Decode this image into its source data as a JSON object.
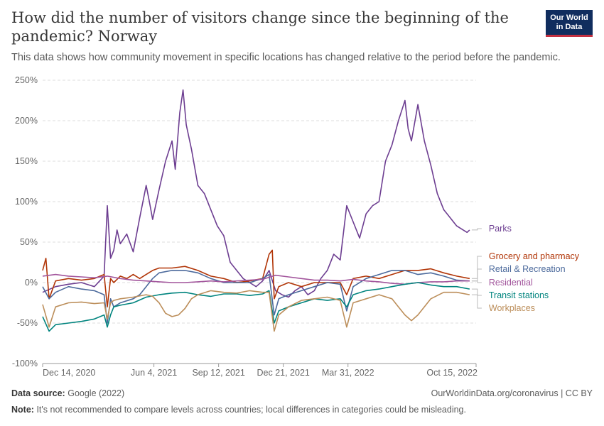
{
  "header": {
    "title": "How did the number of visitors change since the beginning of the pandemic? Norway",
    "subtitle": "This data shows how community movement in specific locations has changed relative to the period before the pandemic.",
    "logo_line1": "Our World",
    "logo_line2": "in Data"
  },
  "footer": {
    "source_label": "Data source:",
    "source_value": "Google (2022)",
    "credit": "OurWorldinData.org/coronavirus | CC BY",
    "note_label": "Note:",
    "note_value": "It's not recommended to compare levels across countries; local differences in categories could be misleading."
  },
  "chart_data": {
    "type": "line",
    "title": "How did the number of visitors change since the beginning of the pandemic? Norway",
    "xlabel": "",
    "ylabel": "",
    "x_ticks": [
      "Dec 14, 2020",
      "Jun 4, 2021",
      "Sep 12, 2021",
      "Dec 21, 2021",
      "Mar 31, 2022",
      "Oct 15, 2022"
    ],
    "x_tick_values": [
      0,
      172,
      272,
      372,
      472,
      670
    ],
    "x_range": [
      0,
      670
    ],
    "x_unit": "days since Dec 14, 2020",
    "y_ticks": [
      "-100%",
      "-50%",
      "0%",
      "50%",
      "100%",
      "150%",
      "200%",
      "250%"
    ],
    "y_tick_values": [
      -100,
      -50,
      0,
      50,
      100,
      150,
      200,
      250
    ],
    "ylim": [
      -100,
      250
    ],
    "grid": true,
    "legend": "right (line-end labels)",
    "series": [
      {
        "name": "Parks",
        "color": "#6d3e91",
        "points": [
          [
            0,
            -12
          ],
          [
            20,
            -5
          ],
          [
            40,
            -2
          ],
          [
            60,
            0
          ],
          [
            80,
            -5
          ],
          [
            95,
            8
          ],
          [
            100,
            95
          ],
          [
            105,
            30
          ],
          [
            110,
            40
          ],
          [
            115,
            65
          ],
          [
            120,
            48
          ],
          [
            130,
            60
          ],
          [
            140,
            38
          ],
          [
            150,
            80
          ],
          [
            160,
            120
          ],
          [
            165,
            100
          ],
          [
            170,
            78
          ],
          [
            180,
            115
          ],
          [
            190,
            150
          ],
          [
            200,
            175
          ],
          [
            205,
            140
          ],
          [
            212,
            210
          ],
          [
            217,
            238
          ],
          [
            222,
            195
          ],
          [
            230,
            165
          ],
          [
            240,
            120
          ],
          [
            250,
            110
          ],
          [
            260,
            90
          ],
          [
            270,
            70
          ],
          [
            280,
            58
          ],
          [
            290,
            25
          ],
          [
            300,
            15
          ],
          [
            310,
            5
          ],
          [
            320,
            0
          ],
          [
            330,
            -5
          ],
          [
            340,
            2
          ],
          [
            350,
            15
          ],
          [
            360,
            -10
          ],
          [
            370,
            -15
          ],
          [
            380,
            -18
          ],
          [
            390,
            -10
          ],
          [
            400,
            -5
          ],
          [
            410,
            -15
          ],
          [
            420,
            -10
          ],
          [
            430,
            5
          ],
          [
            440,
            15
          ],
          [
            450,
            35
          ],
          [
            460,
            28
          ],
          [
            470,
            95
          ],
          [
            480,
            75
          ],
          [
            490,
            55
          ],
          [
            500,
            85
          ],
          [
            510,
            95
          ],
          [
            520,
            100
          ],
          [
            530,
            150
          ],
          [
            540,
            170
          ],
          [
            550,
            200
          ],
          [
            560,
            225
          ],
          [
            565,
            190
          ],
          [
            570,
            175
          ],
          [
            580,
            220
          ],
          [
            590,
            175
          ],
          [
            600,
            145
          ],
          [
            610,
            110
          ],
          [
            620,
            90
          ],
          [
            630,
            80
          ],
          [
            640,
            70
          ],
          [
            650,
            65
          ],
          [
            656,
            62
          ],
          [
            660,
            65
          ]
        ]
      },
      {
        "name": "Grocery and pharmacy",
        "color": "#b13507",
        "points": [
          [
            0,
            15
          ],
          [
            5,
            30
          ],
          [
            10,
            -20
          ],
          [
            20,
            2
          ],
          [
            40,
            5
          ],
          [
            60,
            3
          ],
          [
            80,
            5
          ],
          [
            95,
            10
          ],
          [
            100,
            -30
          ],
          [
            105,
            5
          ],
          [
            110,
            0
          ],
          [
            120,
            8
          ],
          [
            130,
            5
          ],
          [
            140,
            10
          ],
          [
            150,
            5
          ],
          [
            160,
            10
          ],
          [
            170,
            15
          ],
          [
            180,
            18
          ],
          [
            200,
            18
          ],
          [
            220,
            20
          ],
          [
            240,
            15
          ],
          [
            260,
            8
          ],
          [
            280,
            5
          ],
          [
            300,
            0
          ],
          [
            320,
            2
          ],
          [
            340,
            5
          ],
          [
            350,
            35
          ],
          [
            355,
            40
          ],
          [
            358,
            -20
          ],
          [
            365,
            -5
          ],
          [
            380,
            0
          ],
          [
            400,
            -5
          ],
          [
            420,
            0
          ],
          [
            440,
            0
          ],
          [
            460,
            0
          ],
          [
            470,
            -15
          ],
          [
            480,
            5
          ],
          [
            500,
            8
          ],
          [
            520,
            5
          ],
          [
            540,
            10
          ],
          [
            560,
            15
          ],
          [
            580,
            15
          ],
          [
            600,
            17
          ],
          [
            620,
            12
          ],
          [
            640,
            8
          ],
          [
            660,
            5
          ]
        ]
      },
      {
        "name": "Retail & Recreation",
        "color": "#4c6a9c",
        "points": [
          [
            0,
            -5
          ],
          [
            10,
            -20
          ],
          [
            20,
            -12
          ],
          [
            40,
            -5
          ],
          [
            60,
            -8
          ],
          [
            80,
            -10
          ],
          [
            95,
            -15
          ],
          [
            100,
            -50
          ],
          [
            105,
            -20
          ],
          [
            110,
            -30
          ],
          [
            120,
            -25
          ],
          [
            140,
            -20
          ],
          [
            150,
            -15
          ],
          [
            160,
            -5
          ],
          [
            170,
            5
          ],
          [
            180,
            12
          ],
          [
            200,
            15
          ],
          [
            220,
            15
          ],
          [
            240,
            12
          ],
          [
            260,
            5
          ],
          [
            280,
            0
          ],
          [
            300,
            0
          ],
          [
            320,
            0
          ],
          [
            340,
            5
          ],
          [
            350,
            10
          ],
          [
            358,
            -40
          ],
          [
            365,
            -20
          ],
          [
            380,
            -15
          ],
          [
            400,
            -10
          ],
          [
            420,
            -5
          ],
          [
            440,
            0
          ],
          [
            460,
            -2
          ],
          [
            470,
            -35
          ],
          [
            480,
            -5
          ],
          [
            500,
            5
          ],
          [
            520,
            10
          ],
          [
            540,
            15
          ],
          [
            560,
            15
          ],
          [
            580,
            10
          ],
          [
            600,
            12
          ],
          [
            620,
            8
          ],
          [
            640,
            3
          ],
          [
            660,
            2
          ]
        ]
      },
      {
        "name": "Residential",
        "color": "#a2559c",
        "points": [
          [
            0,
            8
          ],
          [
            20,
            10
          ],
          [
            40,
            8
          ],
          [
            60,
            7
          ],
          [
            80,
            6
          ],
          [
            100,
            8
          ],
          [
            120,
            5
          ],
          [
            140,
            3
          ],
          [
            160,
            2
          ],
          [
            180,
            1
          ],
          [
            200,
            0
          ],
          [
            220,
            0
          ],
          [
            240,
            1
          ],
          [
            260,
            2
          ],
          [
            280,
            1
          ],
          [
            300,
            2
          ],
          [
            320,
            3
          ],
          [
            340,
            4
          ],
          [
            360,
            9
          ],
          [
            380,
            7
          ],
          [
            400,
            5
          ],
          [
            420,
            3
          ],
          [
            440,
            3
          ],
          [
            460,
            2
          ],
          [
            480,
            4
          ],
          [
            500,
            2
          ],
          [
            520,
            1
          ],
          [
            540,
            -1
          ],
          [
            560,
            -2
          ],
          [
            580,
            0
          ],
          [
            600,
            1
          ],
          [
            620,
            1
          ],
          [
            640,
            2
          ],
          [
            660,
            2
          ]
        ]
      },
      {
        "name": "Transit stations",
        "color": "#00847e",
        "points": [
          [
            0,
            -42
          ],
          [
            10,
            -60
          ],
          [
            20,
            -52
          ],
          [
            40,
            -50
          ],
          [
            60,
            -48
          ],
          [
            80,
            -45
          ],
          [
            95,
            -40
          ],
          [
            100,
            -55
          ],
          [
            105,
            -40
          ],
          [
            110,
            -30
          ],
          [
            120,
            -28
          ],
          [
            140,
            -25
          ],
          [
            160,
            -18
          ],
          [
            180,
            -15
          ],
          [
            200,
            -13
          ],
          [
            220,
            -12
          ],
          [
            240,
            -15
          ],
          [
            260,
            -17
          ],
          [
            280,
            -14
          ],
          [
            300,
            -14
          ],
          [
            320,
            -16
          ],
          [
            340,
            -14
          ],
          [
            350,
            -10
          ],
          [
            358,
            -50
          ],
          [
            365,
            -35
          ],
          [
            380,
            -30
          ],
          [
            400,
            -25
          ],
          [
            420,
            -20
          ],
          [
            440,
            -22
          ],
          [
            460,
            -20
          ],
          [
            470,
            -30
          ],
          [
            480,
            -15
          ],
          [
            500,
            -10
          ],
          [
            520,
            -8
          ],
          [
            540,
            -5
          ],
          [
            560,
            -2
          ],
          [
            580,
            0
          ],
          [
            600,
            -3
          ],
          [
            620,
            -5
          ],
          [
            640,
            -5
          ],
          [
            660,
            -8
          ]
        ]
      },
      {
        "name": "Workplaces",
        "color": "#bc8e5a",
        "points": [
          [
            0,
            -27
          ],
          [
            10,
            -55
          ],
          [
            20,
            -30
          ],
          [
            40,
            -25
          ],
          [
            60,
            -24
          ],
          [
            80,
            -26
          ],
          [
            95,
            -25
          ],
          [
            100,
            -45
          ],
          [
            105,
            -25
          ],
          [
            110,
            -22
          ],
          [
            120,
            -20
          ],
          [
            140,
            -18
          ],
          [
            160,
            -15
          ],
          [
            170,
            -17
          ],
          [
            180,
            -25
          ],
          [
            190,
            -38
          ],
          [
            200,
            -42
          ],
          [
            210,
            -40
          ],
          [
            220,
            -32
          ],
          [
            230,
            -20
          ],
          [
            240,
            -15
          ],
          [
            260,
            -10
          ],
          [
            280,
            -12
          ],
          [
            300,
            -13
          ],
          [
            320,
            -10
          ],
          [
            340,
            -12
          ],
          [
            350,
            -12
          ],
          [
            358,
            -60
          ],
          [
            365,
            -40
          ],
          [
            380,
            -30
          ],
          [
            400,
            -22
          ],
          [
            420,
            -20
          ],
          [
            440,
            -18
          ],
          [
            460,
            -22
          ],
          [
            470,
            -55
          ],
          [
            480,
            -25
          ],
          [
            500,
            -20
          ],
          [
            520,
            -15
          ],
          [
            540,
            -20
          ],
          [
            550,
            -30
          ],
          [
            560,
            -40
          ],
          [
            570,
            -47
          ],
          [
            580,
            -40
          ],
          [
            600,
            -20
          ],
          [
            620,
            -12
          ],
          [
            640,
            -12
          ],
          [
            660,
            -15
          ]
        ]
      }
    ]
  }
}
